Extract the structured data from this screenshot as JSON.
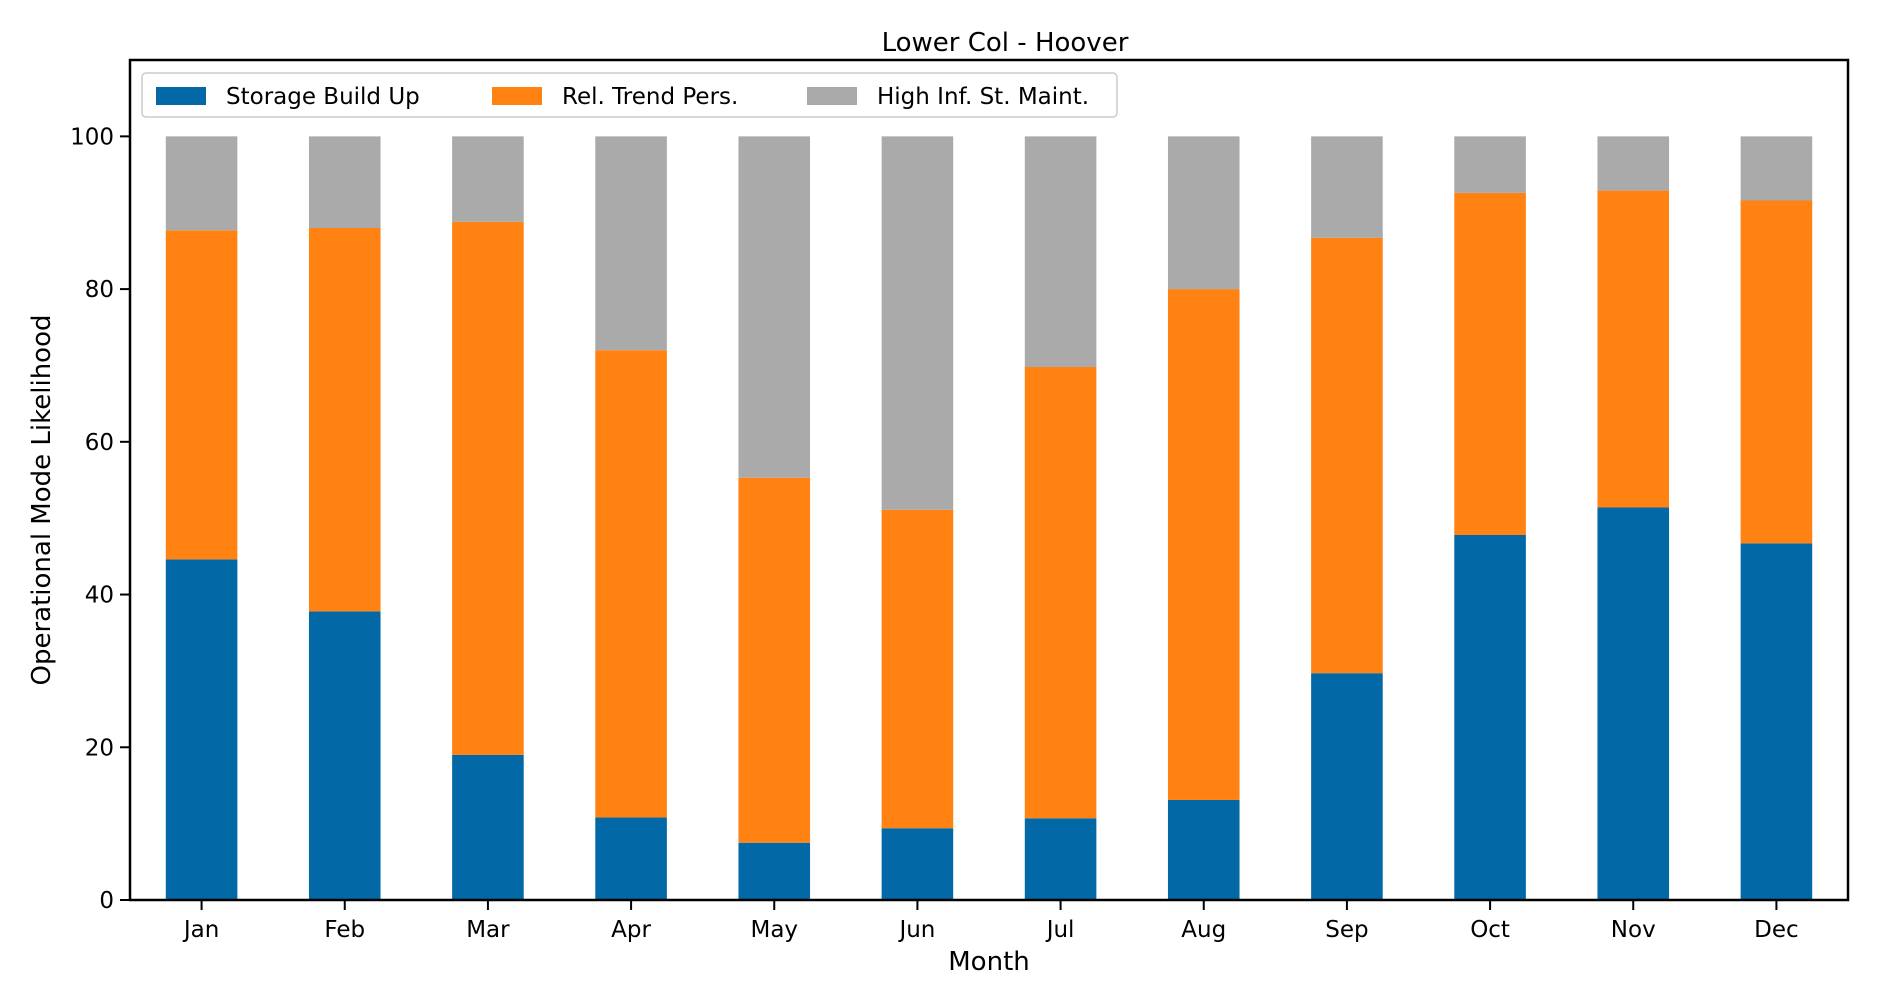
{
  "chart_data": {
    "type": "bar",
    "stacked": true,
    "title": "Lower Col - Hoover",
    "xlabel": "Month",
    "ylabel": "Operational Mode Likelihood",
    "categories": [
      "Jan",
      "Feb",
      "Mar",
      "Apr",
      "May",
      "Jun",
      "Jul",
      "Aug",
      "Sep",
      "Oct",
      "Nov",
      "Dec"
    ],
    "series": [
      {
        "name": "Storage Build Up",
        "color": "#0369a6",
        "values": [
          44.6,
          37.8,
          19.0,
          10.8,
          7.5,
          9.4,
          10.7,
          13.1,
          29.7,
          47.8,
          51.4,
          46.7
        ]
      },
      {
        "name": "Rel. Trend Pers.",
        "color": "#ff8212",
        "values": [
          43.1,
          50.2,
          69.8,
          61.2,
          47.8,
          41.7,
          59.1,
          66.9,
          57.0,
          44.8,
          41.5,
          44.9
        ]
      },
      {
        "name": "High Inf. St. Maint.",
        "color": "#aaaaaa",
        "values": [
          12.3,
          12.0,
          11.2,
          28.0,
          44.7,
          48.9,
          30.2,
          20.0,
          13.3,
          7.4,
          7.1,
          8.4
        ]
      }
    ],
    "ylim": [
      0,
      110
    ],
    "yticks": [
      0,
      20,
      40,
      60,
      80,
      100
    ],
    "grid": false,
    "legend_position": "top-left"
  }
}
